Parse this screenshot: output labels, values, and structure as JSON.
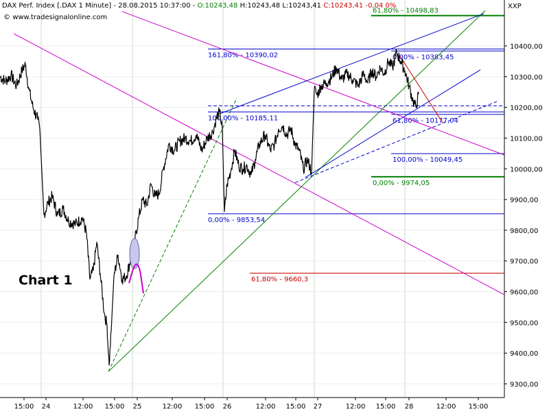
{
  "header": {
    "instrument": "DAX Perf. Index [.DAX  1 Minute]",
    "datetime": "28.08.2015 10:37:00",
    "sep": " - ",
    "open": "O:10243,48",
    "high": "H:10243,48",
    "low": "L:10243,41",
    "close": "C:10243,41",
    "change": "-0,04",
    "change_pct": "0%",
    "source": "www.tradesignalonline.com",
    "panel_tag": "XXP"
  },
  "colors": {
    "open_color": "#008000",
    "close_color": "#d00000",
    "blue": "#0000cc",
    "green": "#008000",
    "magenta": "#cc00cc",
    "red": "#cc0000",
    "price": "#000000",
    "grid": "#d8d8d8"
  },
  "chart_label": "Chart 1",
  "chart_data": {
    "type": "line",
    "title": "DAX Perf. Index [.DAX  1 Minute]",
    "y_axis_labels": [
      "10400,00",
      "10300,00",
      "10200,00",
      "10100,00",
      "10000,00",
      "9900,00",
      "9800,00",
      "9700,00",
      "9600,00",
      "9500,00",
      "9400,00",
      "9300,00"
    ],
    "y_axis_values": [
      10400,
      10300,
      10200,
      10100,
      10000,
      9900,
      9800,
      9700,
      9600,
      9500,
      9400,
      9300
    ],
    "ylim": [
      9280,
      10510
    ],
    "x_axis_labels": [
      "15:00",
      "24",
      "12:00",
      "15:00",
      "25",
      "12:00",
      "15:00",
      "26",
      "12:00",
      "15:00",
      "27",
      "12:00",
      "15:00",
      "28",
      "12:00",
      "15:00"
    ],
    "fib_levels": [
      {
        "label": "61,80% - 10498,83",
        "value": 10498.83,
        "color": "green"
      },
      {
        "label": "161,80% - 10390,02",
        "value": 10390.02,
        "color": "blue"
      },
      {
        "label": "0,00% - 10383,45",
        "value": 10383.45,
        "color": "blue"
      },
      {
        "label": "100,00% - 10185,11",
        "value": 10185.11,
        "color": "blue"
      },
      {
        "label": "61,80% - 10177,04",
        "value": 10177.04,
        "color": "blue"
      },
      {
        "label": "100,00% - 10049,45",
        "value": 10049.45,
        "color": "blue"
      },
      {
        "label": "0,00% - 9974,05",
        "value": 9974.05,
        "color": "green"
      },
      {
        "label": "0,00% - 9853,54",
        "value": 9853.54,
        "color": "blue"
      },
      {
        "label": "61,80% - 9660,3",
        "value": 9660.3,
        "color": "red"
      }
    ],
    "price_series": [
      {
        "t": 0,
        "v": 10300
      },
      {
        "t": 8,
        "v": 10285
      },
      {
        "t": 16,
        "v": 10305
      },
      {
        "t": 24,
        "v": 10270
      },
      {
        "t": 32,
        "v": 10320
      },
      {
        "t": 37,
        "v": 10340
      },
      {
        "t": 42,
        "v": 10260
      },
      {
        "t": 48,
        "v": 10200
      },
      {
        "t": 55,
        "v": 10160
      },
      {
        "t": 58,
        "v": 10130
      },
      {
        "t": 64,
        "v": 9850
      },
      {
        "t": 70,
        "v": 9890
      },
      {
        "t": 76,
        "v": 9910
      },
      {
        "t": 84,
        "v": 9850
      },
      {
        "t": 92,
        "v": 9870
      },
      {
        "t": 100,
        "v": 9830
      },
      {
        "t": 110,
        "v": 9820
      },
      {
        "t": 120,
        "v": 9840
      },
      {
        "t": 126,
        "v": 9790
      },
      {
        "t": 131,
        "v": 9640
      },
      {
        "t": 136,
        "v": 9670
      },
      {
        "t": 141,
        "v": 9760
      },
      {
        "t": 146,
        "v": 9660
      },
      {
        "t": 152,
        "v": 9530
      },
      {
        "t": 156,
        "v": 9490
      },
      {
        "t": 159,
        "v": 9360
      },
      {
        "t": 162,
        "v": 9470
      },
      {
        "t": 166,
        "v": 9650
      },
      {
        "t": 172,
        "v": 9720
      },
      {
        "t": 178,
        "v": 9640
      },
      {
        "t": 184,
        "v": 9650
      },
      {
        "t": 190,
        "v": 9700
      },
      {
        "t": 196,
        "v": 9760
      },
      {
        "t": 202,
        "v": 9840
      },
      {
        "t": 208,
        "v": 9900
      },
      {
        "t": 214,
        "v": 9880
      },
      {
        "t": 220,
        "v": 9950
      },
      {
        "t": 226,
        "v": 9910
      },
      {
        "t": 232,
        "v": 9920
      },
      {
        "t": 238,
        "v": 10000
      },
      {
        "t": 246,
        "v": 10080
      },
      {
        "t": 254,
        "v": 10060
      },
      {
        "t": 262,
        "v": 10090
      },
      {
        "t": 270,
        "v": 10100
      },
      {
        "t": 278,
        "v": 10090
      },
      {
        "t": 286,
        "v": 10110
      },
      {
        "t": 294,
        "v": 10060
      },
      {
        "t": 302,
        "v": 10100
      },
      {
        "t": 310,
        "v": 10120
      },
      {
        "t": 316,
        "v": 10170
      },
      {
        "t": 320,
        "v": 10185
      },
      {
        "t": 324,
        "v": 10130
      },
      {
        "t": 327,
        "v": 9860
      },
      {
        "t": 331,
        "v": 9950
      },
      {
        "t": 336,
        "v": 9990
      },
      {
        "t": 342,
        "v": 10060
      },
      {
        "t": 348,
        "v": 10010
      },
      {
        "t": 354,
        "v": 10000
      },
      {
        "t": 360,
        "v": 10010
      },
      {
        "t": 366,
        "v": 9980
      },
      {
        "t": 372,
        "v": 10030
      },
      {
        "t": 378,
        "v": 10080
      },
      {
        "t": 386,
        "v": 10110
      },
      {
        "t": 394,
        "v": 10060
      },
      {
        "t": 400,
        "v": 10080
      },
      {
        "t": 406,
        "v": 10130
      },
      {
        "t": 412,
        "v": 10140
      },
      {
        "t": 418,
        "v": 10110
      },
      {
        "t": 424,
        "v": 10130
      },
      {
        "t": 430,
        "v": 10080
      },
      {
        "t": 436,
        "v": 10060
      },
      {
        "t": 442,
        "v": 10000
      },
      {
        "t": 448,
        "v": 10030
      },
      {
        "t": 454,
        "v": 9990
      },
      {
        "t": 458,
        "v": 10260
      },
      {
        "t": 462,
        "v": 10240
      },
      {
        "t": 468,
        "v": 10270
      },
      {
        "t": 476,
        "v": 10280
      },
      {
        "t": 484,
        "v": 10300
      },
      {
        "t": 490,
        "v": 10330
      },
      {
        "t": 498,
        "v": 10290
      },
      {
        "t": 506,
        "v": 10310
      },
      {
        "t": 514,
        "v": 10290
      },
      {
        "t": 522,
        "v": 10270
      },
      {
        "t": 530,
        "v": 10310
      },
      {
        "t": 536,
        "v": 10280
      },
      {
        "t": 542,
        "v": 10320
      },
      {
        "t": 548,
        "v": 10300
      },
      {
        "t": 554,
        "v": 10330
      },
      {
        "t": 560,
        "v": 10310
      },
      {
        "t": 566,
        "v": 10350
      },
      {
        "t": 572,
        "v": 10330
      },
      {
        "t": 578,
        "v": 10380
      },
      {
        "t": 584,
        "v": 10350
      },
      {
        "t": 590,
        "v": 10320
      },
      {
        "t": 596,
        "v": 10270
      },
      {
        "t": 602,
        "v": 10220
      },
      {
        "t": 606,
        "v": 10200
      },
      {
        "t": 610,
        "v": 10243
      }
    ],
    "trend_lines": [
      {
        "color": "magenta",
        "from": [
          178,
          10512
        ],
        "to": [
          735,
          10045
        ]
      },
      {
        "color": "magenta",
        "from": [
          20,
          10440
        ],
        "to": [
          735,
          9590
        ]
      },
      {
        "color": "green",
        "from": [
          158,
          9340
        ],
        "to": [
          707,
          10515
        ]
      },
      {
        "color": "green",
        "dash": true,
        "from": [
          158,
          9340
        ],
        "to": [
          345,
          10230
        ]
      },
      {
        "color": "blue",
        "from": [
          315,
          10175
        ],
        "to": [
          705,
          10505
        ]
      },
      {
        "color": "blue",
        "from": [
          445,
          9972
        ],
        "to": [
          700,
          10322
        ]
      },
      {
        "color": "blue",
        "dash": true,
        "from": [
          430,
          9955
        ],
        "to": [
          725,
          10220
        ]
      },
      {
        "color": "red",
        "from": [
          582,
          10370
        ],
        "to": [
          645,
          10150
        ]
      }
    ]
  }
}
